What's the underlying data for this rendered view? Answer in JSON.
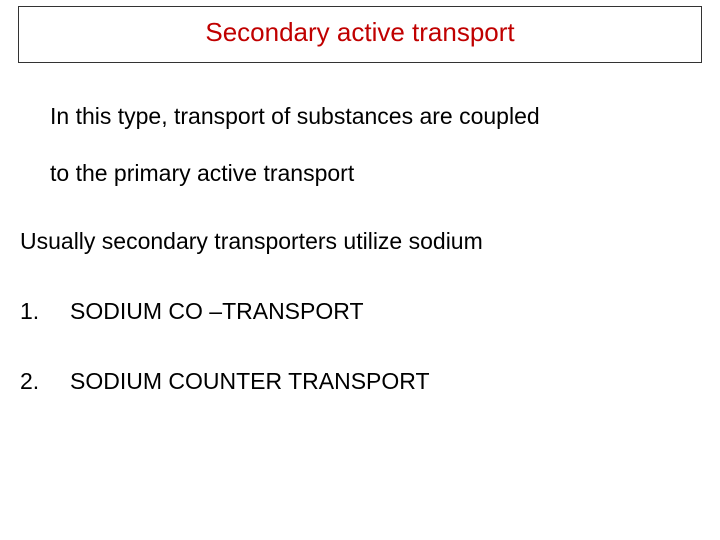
{
  "title": "Secondary active transport",
  "paragraph_line1": "In this type, transport of substances are coupled",
  "paragraph_line2": "to the primary active transport",
  "subheading": "Usually secondary transporters utilize sodium",
  "list": {
    "item1_num": "1.",
    "item1_text": "SODIUM  CO –TRANSPORT",
    "item2_num": "2.",
    "item2_text": "SODIUM COUNTER TRANSPORT"
  },
  "colors": {
    "title_color": "#c00000",
    "text_color": "#000000",
    "border_color": "#333333",
    "background": "#ffffff"
  },
  "fonts": {
    "title_size": 26,
    "body_size": 23,
    "family": "Arial"
  }
}
